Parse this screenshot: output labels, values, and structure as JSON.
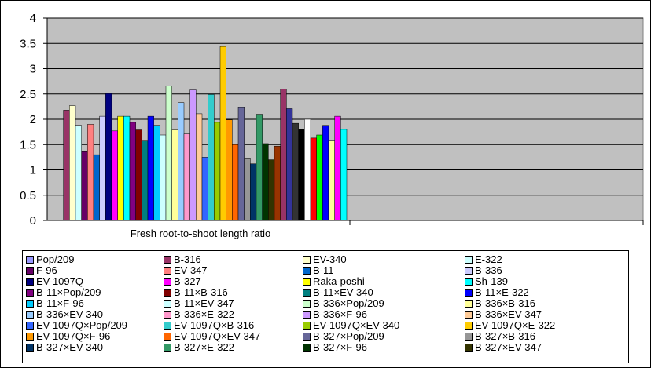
{
  "chart_data": {
    "type": "bar",
    "xlabel": "Fresh root-to-shoot length ratio",
    "ylim": [
      0,
      4
    ],
    "yticks": [
      "0",
      "0.5",
      "1",
      "1.5",
      "2",
      "2.5",
      "3",
      "3.5",
      "4"
    ],
    "grid": true,
    "plot_background": "#c0c0c0",
    "legend_position": "bottom",
    "series": [
      {
        "name": "Pop/209",
        "value": 0,
        "color": "#9999ff"
      },
      {
        "name": "B-316",
        "value": 2.18,
        "color": "#993366"
      },
      {
        "name": "EV-340",
        "value": 2.27,
        "color": "#ffffcc"
      },
      {
        "name": "E-322",
        "value": 1.88,
        "color": "#ccffff"
      },
      {
        "name": "F-96",
        "value": 1.36,
        "color": "#660066"
      },
      {
        "name": "EV-347",
        "value": 1.9,
        "color": "#ff8080"
      },
      {
        "name": "B-11",
        "value": 1.3,
        "color": "#0066cc"
      },
      {
        "name": "B-336",
        "value": 2.06,
        "color": "#ccccff"
      },
      {
        "name": "EV-1097Q",
        "value": 2.51,
        "color": "#000080"
      },
      {
        "name": "B-327",
        "value": 1.77,
        "color": "#ff00ff"
      },
      {
        "name": "Raka-poshi",
        "value": 2.06,
        "color": "#ffff00"
      },
      {
        "name": "Sh-139",
        "value": 2.06,
        "color": "#00ffff"
      },
      {
        "name": "B-11×Pop/209",
        "value": 1.94,
        "color": "#800080"
      },
      {
        "name": "B-11×B-316",
        "value": 1.79,
        "color": "#800000"
      },
      {
        "name": "B-11×EV-340",
        "value": 1.57,
        "color": "#008080"
      },
      {
        "name": "B-11×E-322",
        "value": 2.06,
        "color": "#0000ff"
      },
      {
        "name": "B-11×F-96",
        "value": 1.88,
        "color": "#00ccff"
      },
      {
        "name": "B-11×EV-347",
        "value": 1.69,
        "color": "#ccffff"
      },
      {
        "name": "B-336×Pop/209",
        "value": 2.66,
        "color": "#ccffcc"
      },
      {
        "name": "B-336×B-316",
        "value": 1.79,
        "color": "#ffff99"
      },
      {
        "name": "B-336×EV-340",
        "value": 2.33,
        "color": "#99ccff"
      },
      {
        "name": "B-336×E-322",
        "value": 1.71,
        "color": "#ff99cc"
      },
      {
        "name": "B-336×F-96",
        "value": 2.58,
        "color": "#cc99ff"
      },
      {
        "name": "B-336×EV-347",
        "value": 2.11,
        "color": "#ffcc99"
      },
      {
        "name": "EV-1097Q×Pop/209",
        "value": 1.25,
        "color": "#3366ff"
      },
      {
        "name": "EV-1097Q×B-316",
        "value": 2.49,
        "color": "#33cccc"
      },
      {
        "name": "EV-1097Q×EV-340",
        "value": 1.94,
        "color": "#99cc00"
      },
      {
        "name": "EV-1097Q×E-322",
        "value": 3.44,
        "color": "#ffcc00"
      },
      {
        "name": "EV-1097Q×F-96",
        "value": 1.99,
        "color": "#ff9900"
      },
      {
        "name": "EV-1097Q×EV-347",
        "value": 1.5,
        "color": "#ff6600"
      },
      {
        "name": "B-327×Pop/209",
        "value": 2.23,
        "color": "#666699"
      },
      {
        "name": "B-327×B-316",
        "value": 1.22,
        "color": "#969696"
      },
      {
        "name": "B-327×EV-340",
        "value": 1.12,
        "color": "#003366"
      },
      {
        "name": "B-327×E-322",
        "value": 2.1,
        "color": "#339966"
      },
      {
        "name": "B-327×F-96",
        "value": 1.52,
        "color": "#003300"
      },
      {
        "name": "B-327×EV-347",
        "value": 1.2,
        "color": "#333300"
      },
      {
        "name": "",
        "value": 1.47,
        "color": "#993300"
      },
      {
        "name": "",
        "value": 2.6,
        "color": "#993366"
      },
      {
        "name": "",
        "value": 2.21,
        "color": "#333399"
      },
      {
        "name": "",
        "value": 1.92,
        "color": "#333333"
      },
      {
        "name": "",
        "value": 1.81,
        "color": "#000000"
      },
      {
        "name": "",
        "value": 2.0,
        "color": "#ffffff"
      },
      {
        "name": "",
        "value": 1.63,
        "color": "#ff0000"
      },
      {
        "name": "",
        "value": 1.69,
        "color": "#00ff00"
      },
      {
        "name": "",
        "value": 1.88,
        "color": "#0000ff"
      },
      {
        "name": "",
        "value": 1.57,
        "color": "#ffff99"
      },
      {
        "name": "",
        "value": 2.06,
        "color": "#ff00ff"
      },
      {
        "name": "",
        "value": 1.8,
        "color": "#00ffff"
      }
    ]
  }
}
